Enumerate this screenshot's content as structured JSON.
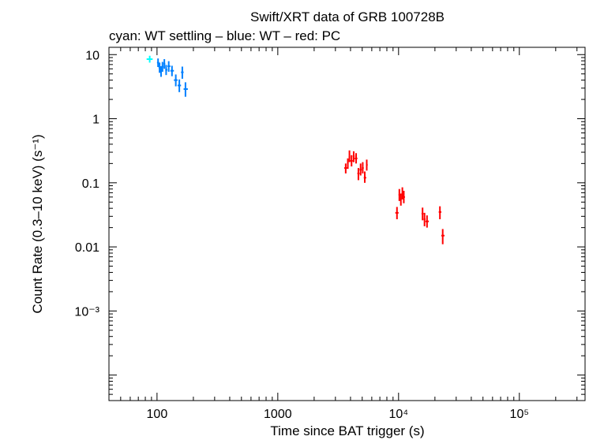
{
  "chart_data": {
    "type": "scatter",
    "title": "Swift/XRT data of GRB 100728B",
    "subtitle": "cyan: WT settling – blue: WT – red: PC",
    "xlabel": "Time since BAT trigger (s)",
    "ylabel": "Count Rate (0.3–10 keV) (s⁻¹)",
    "xscale": "log",
    "yscale": "log",
    "xlim": [
      40,
      350000
    ],
    "ylim": [
      4e-05,
      13
    ],
    "x_ticks": [
      {
        "value": 100,
        "label": "100"
      },
      {
        "value": 1000,
        "label": "1000"
      },
      {
        "value": 10000,
        "label": "10⁴"
      },
      {
        "value": 100000,
        "label": "10⁵"
      }
    ],
    "y_ticks": [
      {
        "value": 10,
        "label": "10"
      },
      {
        "value": 1,
        "label": "1"
      },
      {
        "value": 0.1,
        "label": "0.1"
      },
      {
        "value": 0.01,
        "label": "0.01"
      },
      {
        "value": 0.001,
        "label": "10⁻³"
      }
    ],
    "series": [
      {
        "name": "WT settling",
        "color": "#00ffff",
        "points": [
          {
            "x": 87,
            "xlo": 82,
            "xhi": 92,
            "y": 8.5,
            "ylo": 7.5,
            "yhi": 9.6
          }
        ]
      },
      {
        "name": "WT",
        "color": "#0080ff",
        "points": [
          {
            "x": 102,
            "xlo": 100,
            "xhi": 104,
            "y": 7.5,
            "ylo": 6.4,
            "yhi": 8.7
          },
          {
            "x": 105,
            "xlo": 103,
            "xhi": 107,
            "y": 6.3,
            "ylo": 5.2,
            "yhi": 7.5
          },
          {
            "x": 108,
            "xlo": 106,
            "xhi": 110,
            "y": 5.5,
            "ylo": 4.5,
            "yhi": 6.6
          },
          {
            "x": 111,
            "xlo": 109,
            "xhi": 113,
            "y": 6.5,
            "ylo": 5.4,
            "yhi": 7.7
          },
          {
            "x": 115,
            "xlo": 113,
            "xhi": 117,
            "y": 7.2,
            "ylo": 6.0,
            "yhi": 8.5
          },
          {
            "x": 119,
            "xlo": 117,
            "xhi": 122,
            "y": 5.8,
            "ylo": 4.8,
            "yhi": 6.9
          },
          {
            "x": 125,
            "xlo": 122,
            "xhi": 129,
            "y": 6.6,
            "ylo": 5.4,
            "yhi": 7.9
          },
          {
            "x": 133,
            "xlo": 129,
            "xhi": 138,
            "y": 5.6,
            "ylo": 4.6,
            "yhi": 6.7
          },
          {
            "x": 143,
            "xlo": 138,
            "xhi": 148,
            "y": 4.0,
            "ylo": 3.2,
            "yhi": 4.9
          },
          {
            "x": 153,
            "xlo": 148,
            "xhi": 158,
            "y": 3.3,
            "ylo": 2.6,
            "yhi": 4.1
          },
          {
            "x": 162,
            "xlo": 158,
            "xhi": 166,
            "y": 5.3,
            "ylo": 4.2,
            "yhi": 6.5
          },
          {
            "x": 172,
            "xlo": 166,
            "xhi": 180,
            "y": 2.9,
            "ylo": 2.2,
            "yhi": 3.7
          }
        ]
      },
      {
        "name": "PC",
        "color": "#ff0000",
        "points": [
          {
            "x": 3650,
            "xlo": 3550,
            "xhi": 3750,
            "y": 0.17,
            "ylo": 0.14,
            "yhi": 0.2
          },
          {
            "x": 3800,
            "xlo": 3750,
            "xhi": 3860,
            "y": 0.2,
            "ylo": 0.165,
            "yhi": 0.24
          },
          {
            "x": 3920,
            "xlo": 3860,
            "xhi": 3980,
            "y": 0.25,
            "ylo": 0.21,
            "yhi": 0.32
          },
          {
            "x": 4080,
            "xlo": 3980,
            "xhi": 4180,
            "y": 0.22,
            "ylo": 0.18,
            "yhi": 0.27
          },
          {
            "x": 4250,
            "xlo": 4180,
            "xhi": 4330,
            "y": 0.26,
            "ylo": 0.21,
            "yhi": 0.31
          },
          {
            "x": 4450,
            "xlo": 4330,
            "xhi": 4560,
            "y": 0.24,
            "ylo": 0.2,
            "yhi": 0.29
          },
          {
            "x": 4650,
            "xlo": 4560,
            "xhi": 4750,
            "y": 0.14,
            "ylo": 0.11,
            "yhi": 0.17
          },
          {
            "x": 4850,
            "xlo": 4750,
            "xhi": 4960,
            "y": 0.16,
            "ylo": 0.13,
            "yhi": 0.2
          },
          {
            "x": 5050,
            "xlo": 4960,
            "xhi": 5150,
            "y": 0.17,
            "ylo": 0.14,
            "yhi": 0.21
          },
          {
            "x": 5250,
            "xlo": 5150,
            "xhi": 5400,
            "y": 0.12,
            "ylo": 0.1,
            "yhi": 0.15
          },
          {
            "x": 5450,
            "xlo": 5400,
            "xhi": 5550,
            "y": 0.19,
            "ylo": 0.155,
            "yhi": 0.23
          },
          {
            "x": 9700,
            "xlo": 9400,
            "xhi": 10000,
            "y": 0.034,
            "ylo": 0.027,
            "yhi": 0.042
          },
          {
            "x": 10150,
            "xlo": 10000,
            "xhi": 10300,
            "y": 0.065,
            "ylo": 0.052,
            "yhi": 0.08
          },
          {
            "x": 10450,
            "xlo": 10300,
            "xhi": 10600,
            "y": 0.055,
            "ylo": 0.044,
            "yhi": 0.068
          },
          {
            "x": 10750,
            "xlo": 10600,
            "xhi": 10900,
            "y": 0.068,
            "ylo": 0.055,
            "yhi": 0.085
          },
          {
            "x": 11050,
            "xlo": 10900,
            "xhi": 11300,
            "y": 0.06,
            "ylo": 0.048,
            "yhi": 0.075
          },
          {
            "x": 15800,
            "xlo": 15500,
            "xhi": 16100,
            "y": 0.033,
            "ylo": 0.026,
            "yhi": 0.041
          },
          {
            "x": 16400,
            "xlo": 16100,
            "xhi": 16700,
            "y": 0.027,
            "ylo": 0.021,
            "yhi": 0.034
          },
          {
            "x": 17200,
            "xlo": 16700,
            "xhi": 17800,
            "y": 0.025,
            "ylo": 0.02,
            "yhi": 0.031
          },
          {
            "x": 22000,
            "xlo": 21500,
            "xhi": 22600,
            "y": 0.035,
            "ylo": 0.027,
            "yhi": 0.043
          },
          {
            "x": 23200,
            "xlo": 22600,
            "xhi": 24000,
            "y": 0.015,
            "ylo": 0.011,
            "yhi": 0.019
          }
        ]
      }
    ]
  }
}
